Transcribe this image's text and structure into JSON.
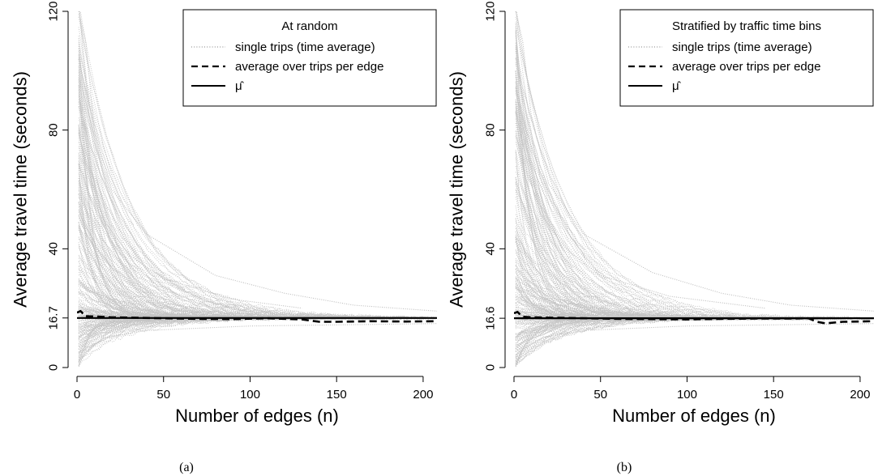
{
  "chart_data": [
    {
      "type": "line",
      "caption": "(a)",
      "xlabel": "Number of edges (n)",
      "ylabel": "Average travel time (seconds)",
      "xlim": [
        0,
        208
      ],
      "ylim": [
        0,
        120
      ],
      "x_ticks": [
        0,
        50,
        100,
        150,
        200
      ],
      "y_ticks": [
        0,
        16.7,
        40,
        80,
        120
      ],
      "y_tick_labels": [
        "0",
        "16.7",
        "40",
        "80",
        "120"
      ],
      "grid": false,
      "legend": {
        "placement": "top-right",
        "title": "At random",
        "entries": [
          "single trips (time average)",
          "average over trips per edge",
          "μ̂"
        ]
      },
      "series": [
        {
          "style": "dotted-gray",
          "x": [
            1,
            5,
            10,
            20,
            40,
            80,
            120,
            160,
            208
          ],
          "y": [
            120,
            110,
            80,
            60,
            45,
            31,
            25,
            21,
            19
          ]
        },
        {
          "style": "dotted-gray",
          "x": [
            1,
            5,
            15,
            30,
            50,
            90,
            130
          ],
          "y": [
            95,
            70,
            50,
            38,
            30,
            23,
            20
          ]
        },
        {
          "style": "dotted-gray",
          "x": [
            1,
            3,
            8,
            16,
            40,
            100,
            208
          ],
          "y": [
            0.5,
            3,
            7,
            10,
            12.5,
            14,
            14.8
          ]
        },
        {
          "style": "dashed",
          "x": [
            0,
            2,
            5,
            10,
            20,
            30,
            50,
            70,
            90,
            110,
            130,
            140,
            150,
            170,
            190,
            208
          ],
          "y": [
            18.5,
            19,
            17.3,
            17.2,
            16.9,
            16.8,
            16.6,
            16.4,
            16.3,
            16.6,
            16.2,
            15.4,
            15.4,
            15.6,
            15.5,
            15.6
          ]
        },
        {
          "style": "solid",
          "x": [
            0,
            208
          ],
          "y": [
            16.7,
            16.7
          ]
        }
      ]
    },
    {
      "type": "line",
      "caption": "(b)",
      "xlabel": "Number of edges (n)",
      "ylabel": "Average travel time (seconds)",
      "xlim": [
        0,
        208
      ],
      "ylim": [
        0,
        120
      ],
      "x_ticks": [
        0,
        50,
        100,
        150,
        200
      ],
      "y_ticks": [
        0,
        16.6,
        40,
        80,
        120
      ],
      "y_tick_labels": [
        "0",
        "16.6",
        "40",
        "80",
        "120"
      ],
      "grid": false,
      "legend": {
        "placement": "top-right",
        "title": "Stratified by traffic time bins",
        "entries": [
          "single trips (time average)",
          "average over trips per edge",
          "μ̂"
        ]
      },
      "series": [
        {
          "style": "dotted-gray",
          "x": [
            1,
            5,
            10,
            20,
            40,
            80,
            120,
            160,
            208
          ],
          "y": [
            120,
            110,
            85,
            62,
            45,
            32,
            25,
            21,
            19
          ]
        },
        {
          "style": "dotted-gray",
          "x": [
            1,
            5,
            15,
            30,
            50,
            90,
            145
          ],
          "y": [
            100,
            72,
            52,
            40,
            31,
            24,
            20
          ]
        },
        {
          "style": "dotted-gray",
          "x": [
            1,
            3,
            8,
            16,
            40,
            100,
            208
          ],
          "y": [
            0.5,
            3,
            7,
            10,
            12.5,
            14,
            14.8
          ]
        },
        {
          "style": "dashed",
          "x": [
            0,
            2,
            5,
            10,
            20,
            40,
            60,
            80,
            100,
            120,
            140,
            160,
            170,
            175,
            180,
            190,
            208
          ],
          "y": [
            18.3,
            18.7,
            17.1,
            16.9,
            16.8,
            16.6,
            16.4,
            16.3,
            16.2,
            16.4,
            16.5,
            16.5,
            16.6,
            15.4,
            14.9,
            15.4,
            15.6
          ]
        },
        {
          "style": "solid",
          "x": [
            0,
            208
          ],
          "y": [
            16.6,
            16.6
          ]
        }
      ]
    }
  ]
}
